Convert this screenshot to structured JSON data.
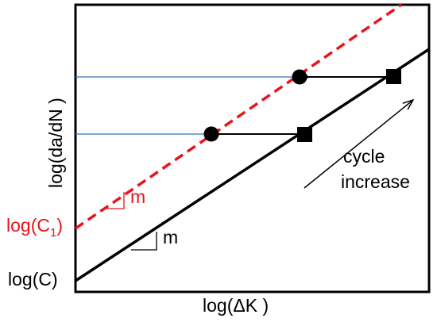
{
  "labels": {
    "y_axis": "log(da/dN )",
    "x_axis": "log(ΔK )",
    "log_c1_prefix": "log(C",
    "log_c1_sub": "1",
    "log_c1_suffix": ")",
    "log_c": "log(C)",
    "slope_upper": "m",
    "slope_lower": "m",
    "cycle_line1": "cycle",
    "cycle_line2": "increase"
  },
  "colors": {
    "base_line": "#000000",
    "shifted_line": "#e8141b",
    "level_lines": "#2e75b6",
    "frame": "#000000"
  },
  "markers": {
    "on_base_line": "square",
    "on_shifted_line": "circle"
  }
}
